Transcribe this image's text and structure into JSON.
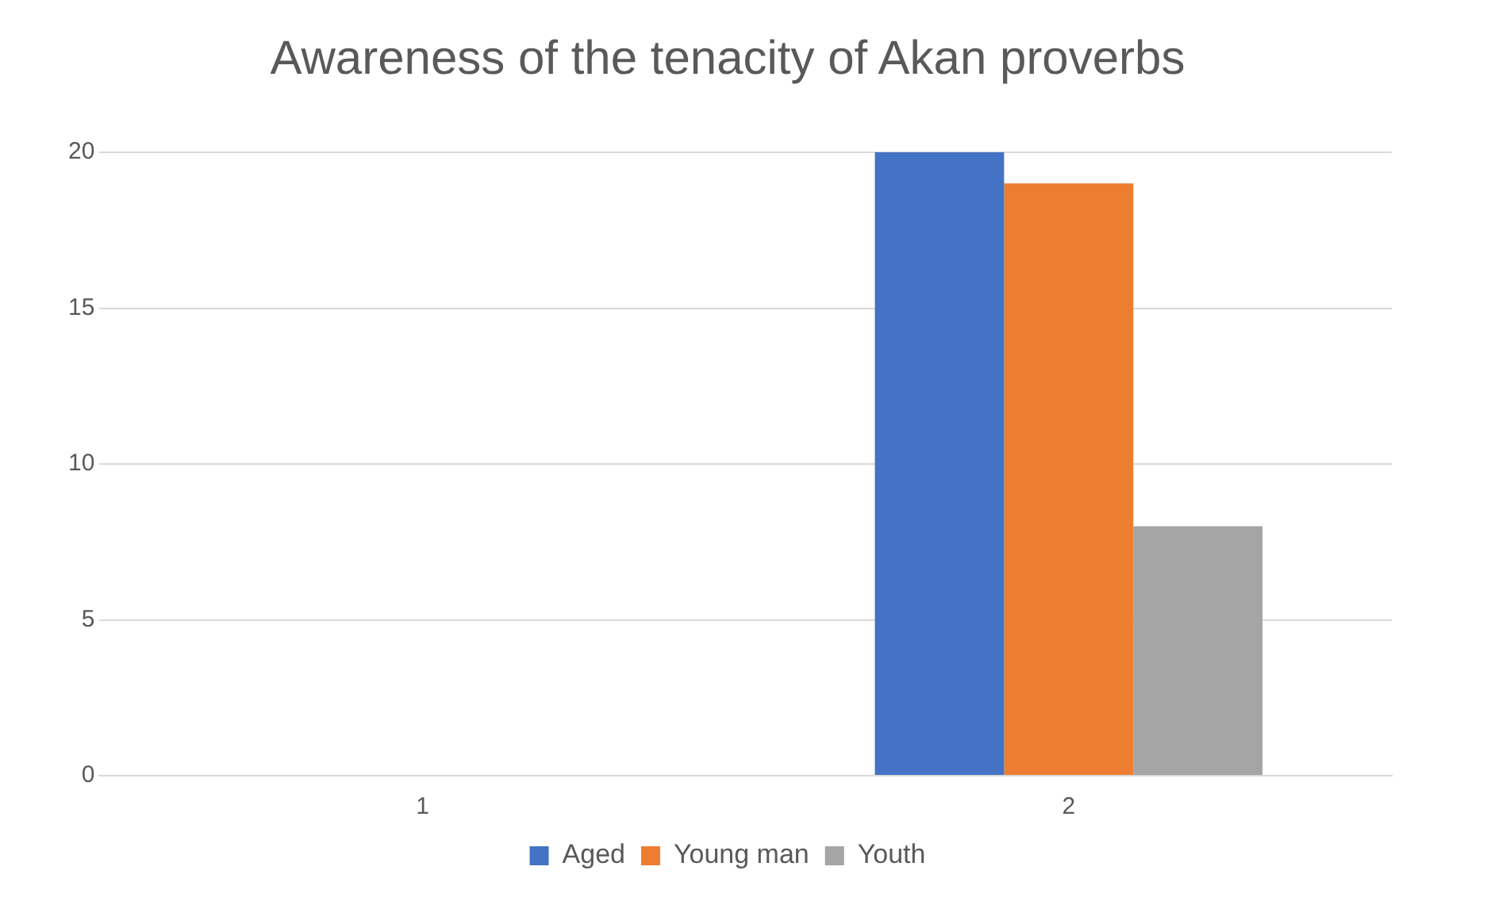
{
  "chart_data": {
    "type": "bar",
    "title": "Awareness of the tenacity of Akan proverbs",
    "categories": [
      "1",
      "2"
    ],
    "series": [
      {
        "name": "Aged",
        "color": "#4472c4",
        "values": [
          0,
          20
        ]
      },
      {
        "name": "Young man",
        "color": "#ed7d31",
        "values": [
          0,
          19
        ]
      },
      {
        "name": "Youth",
        "color": "#a5a5a5",
        "values": [
          0,
          8
        ]
      }
    ],
    "ylim": [
      0,
      20
    ],
    "yticks": [
      0,
      5,
      10,
      15,
      20
    ],
    "grid": "y",
    "legend": "bottom"
  }
}
